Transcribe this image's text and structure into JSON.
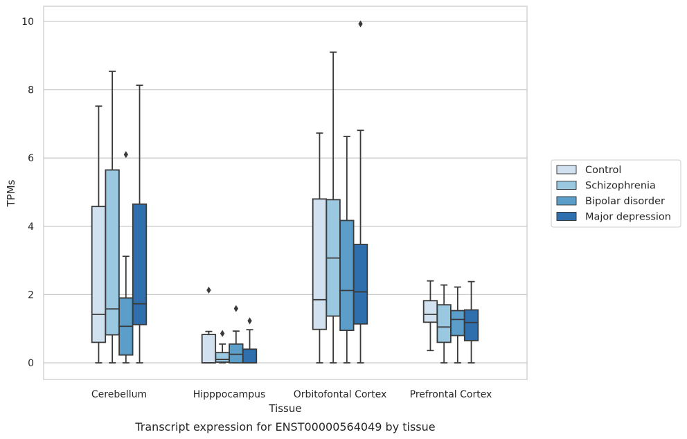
{
  "chart_data": {
    "type": "box",
    "title": "Transcript expression for ENST00000564049 by tissue",
    "xlabel": "Tissue",
    "ylabel": "TPMs",
    "ylim": [
      -0.45,
      10.45
    ],
    "yticks": [
      0,
      2,
      4,
      6,
      8,
      10
    ],
    "grid": "horizontal",
    "legend_position": "center-right, outside plot",
    "categories": [
      "Cerebellum",
      "Hipppocampus",
      "Orbitofontal Cortex",
      "Prefrontal Cortex"
    ],
    "series": [
      {
        "name": "Control",
        "color": "#d1e1f0",
        "boxes": [
          {
            "whislo": 0,
            "q1": 0.6,
            "med": 1.42,
            "q3": 4.58,
            "whishi": 7.52,
            "fliers": []
          },
          {
            "whislo": 0,
            "q1": 0.0,
            "med": 0.0,
            "q3": 0.83,
            "whishi": 0.92,
            "fliers": [
              2.13
            ]
          },
          {
            "whislo": 0,
            "q1": 0.98,
            "med": 1.85,
            "q3": 4.8,
            "whishi": 6.73,
            "fliers": []
          },
          {
            "whislo": 0.36,
            "q1": 1.19,
            "med": 1.42,
            "q3": 1.82,
            "whishi": 2.4,
            "fliers": []
          }
        ]
      },
      {
        "name": "Schizophrenia",
        "color": "#9ac8e0",
        "boxes": [
          {
            "whislo": 0,
            "q1": 0.82,
            "med": 1.58,
            "q3": 5.65,
            "whishi": 8.54,
            "fliers": []
          },
          {
            "whislo": 0,
            "q1": 0.02,
            "med": 0.1,
            "q3": 0.3,
            "whishi": 0.55,
            "fliers": [
              0.86
            ]
          },
          {
            "whislo": 0,
            "q1": 1.37,
            "med": 3.07,
            "q3": 4.78,
            "whishi": 9.1,
            "fliers": []
          },
          {
            "whislo": 0,
            "q1": 0.6,
            "med": 1.05,
            "q3": 1.7,
            "whishi": 2.28,
            "fliers": []
          }
        ]
      },
      {
        "name": "Bipolar disorder",
        "color": "#5a9ec9",
        "boxes": [
          {
            "whislo": 0,
            "q1": 0.23,
            "med": 1.07,
            "q3": 1.9,
            "whishi": 3.12,
            "fliers": [
              6.1
            ]
          },
          {
            "whislo": 0,
            "q1": 0.0,
            "med": 0.25,
            "q3": 0.55,
            "whishi": 0.93,
            "fliers": [
              1.59
            ]
          },
          {
            "whislo": 0,
            "q1": 0.95,
            "med": 2.12,
            "q3": 4.17,
            "whishi": 6.63,
            "fliers": []
          },
          {
            "whislo": 0,
            "q1": 0.8,
            "med": 1.27,
            "q3": 1.53,
            "whishi": 2.22,
            "fliers": []
          }
        ]
      },
      {
        "name": "Major depression",
        "color": "#2f6fae",
        "boxes": [
          {
            "whislo": 0,
            "q1": 1.12,
            "med": 1.73,
            "q3": 4.65,
            "whishi": 8.13,
            "fliers": []
          },
          {
            "whislo": 0,
            "q1": 0.0,
            "med": 0.0,
            "q3": 0.4,
            "whishi": 0.97,
            "fliers": [
              1.23
            ]
          },
          {
            "whislo": 0,
            "q1": 1.14,
            "med": 2.08,
            "q3": 3.47,
            "whishi": 6.81,
            "fliers": [
              9.93
            ]
          },
          {
            "whislo": 0,
            "q1": 0.65,
            "med": 1.18,
            "q3": 1.55,
            "whishi": 2.38,
            "fliers": []
          }
        ]
      }
    ]
  }
}
